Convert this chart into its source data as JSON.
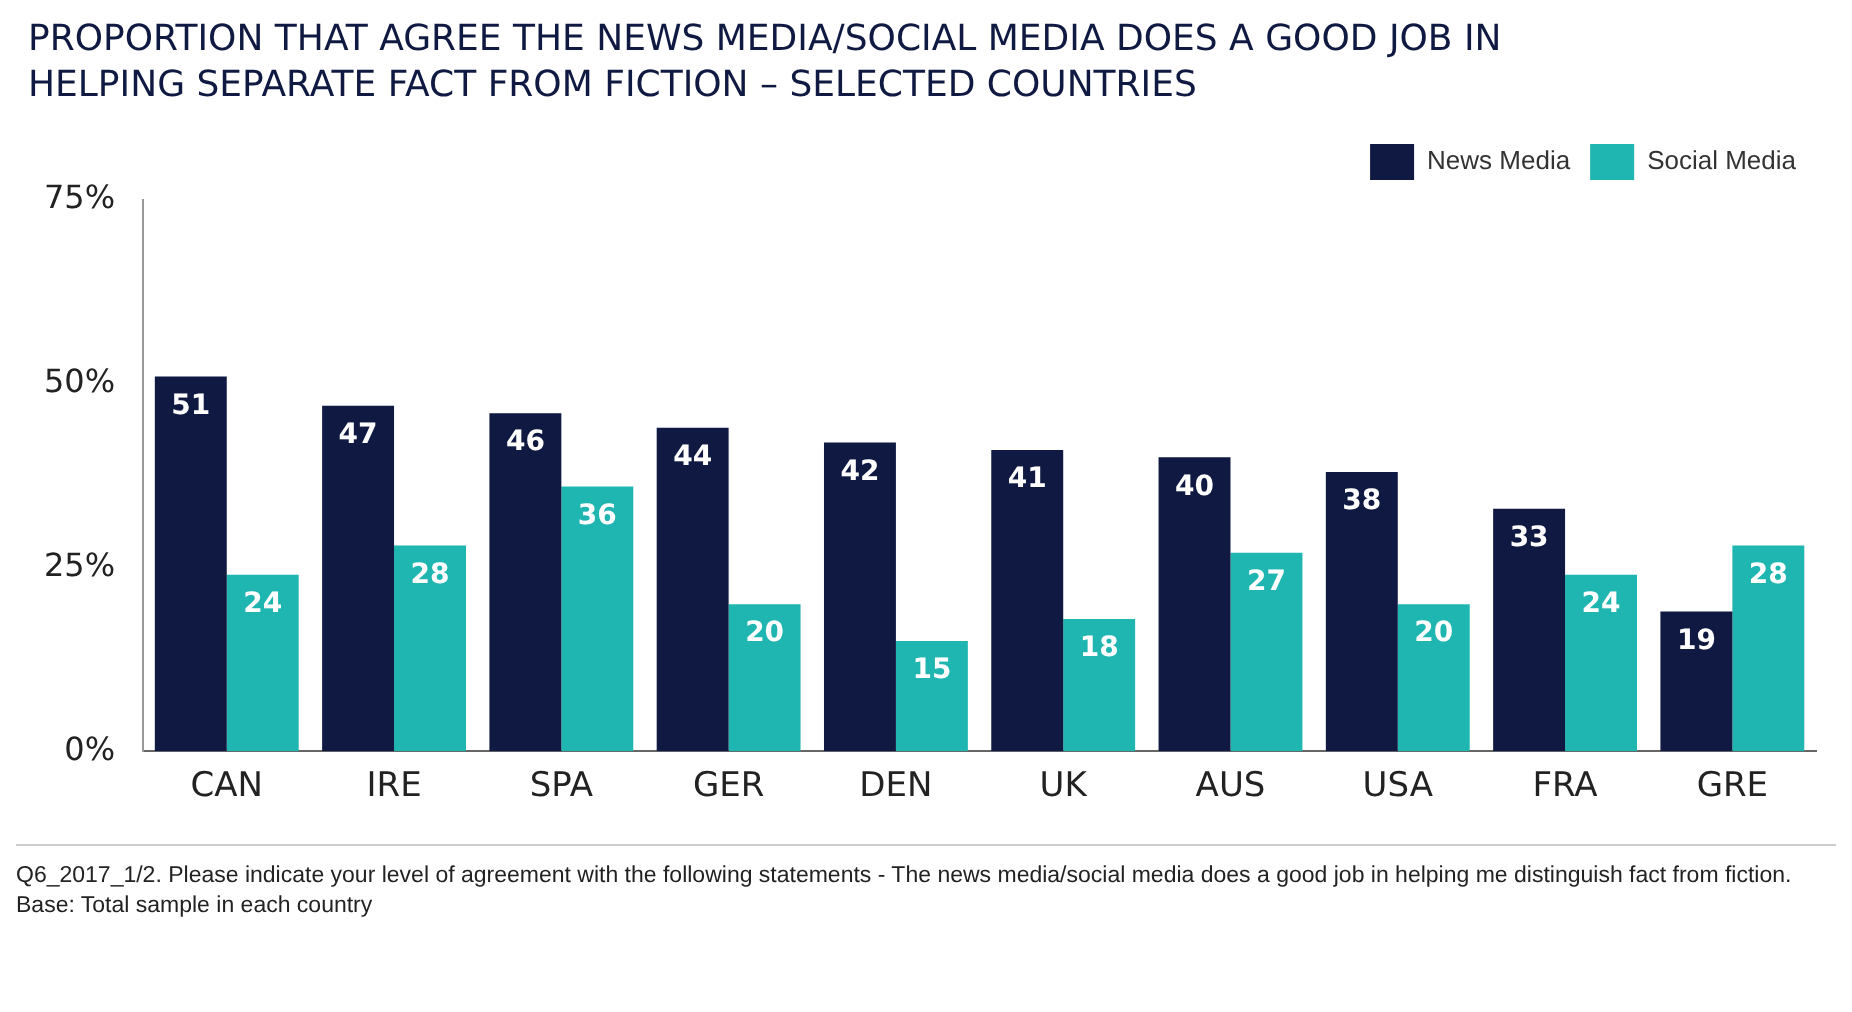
{
  "chart_data": {
    "type": "bar",
    "title": "PROPORTION THAT AGREE THE NEWS MEDIA/SOCIAL MEDIA DOES A GOOD JOB IN HELPING SEPARATE FACT FROM FICTION – SELECTED COUNTRIES",
    "categories": [
      "CAN",
      "IRE",
      "SPA",
      "GER",
      "DEN",
      "UK",
      "AUS",
      "USA",
      "FRA",
      "GRE"
    ],
    "series": [
      {
        "name": "News Media",
        "color": "#0f1941",
        "values": [
          51,
          47,
          46,
          44,
          42,
          41,
          40,
          38,
          33,
          19
        ]
      },
      {
        "name": "Social Media",
        "color": "#1fb5b0",
        "values": [
          24,
          28,
          36,
          20,
          15,
          18,
          27,
          20,
          24,
          28
        ]
      }
    ],
    "ylim": [
      0,
      75
    ],
    "yticks": [
      {
        "value": 0,
        "label": "0%"
      },
      {
        "value": 25,
        "label": "25%"
      },
      {
        "value": 50,
        "label": "50%"
      },
      {
        "value": 75,
        "label": "75%"
      }
    ],
    "grid": false,
    "legend": "top right",
    "data_labels": true,
    "annotations": [
      "Q6_2017_1/2. Please indicate your level of agreement with the following statements - The news media/social media does a good job in helping me distinguish fact from fiction. Base: Total sample in each country"
    ]
  }
}
